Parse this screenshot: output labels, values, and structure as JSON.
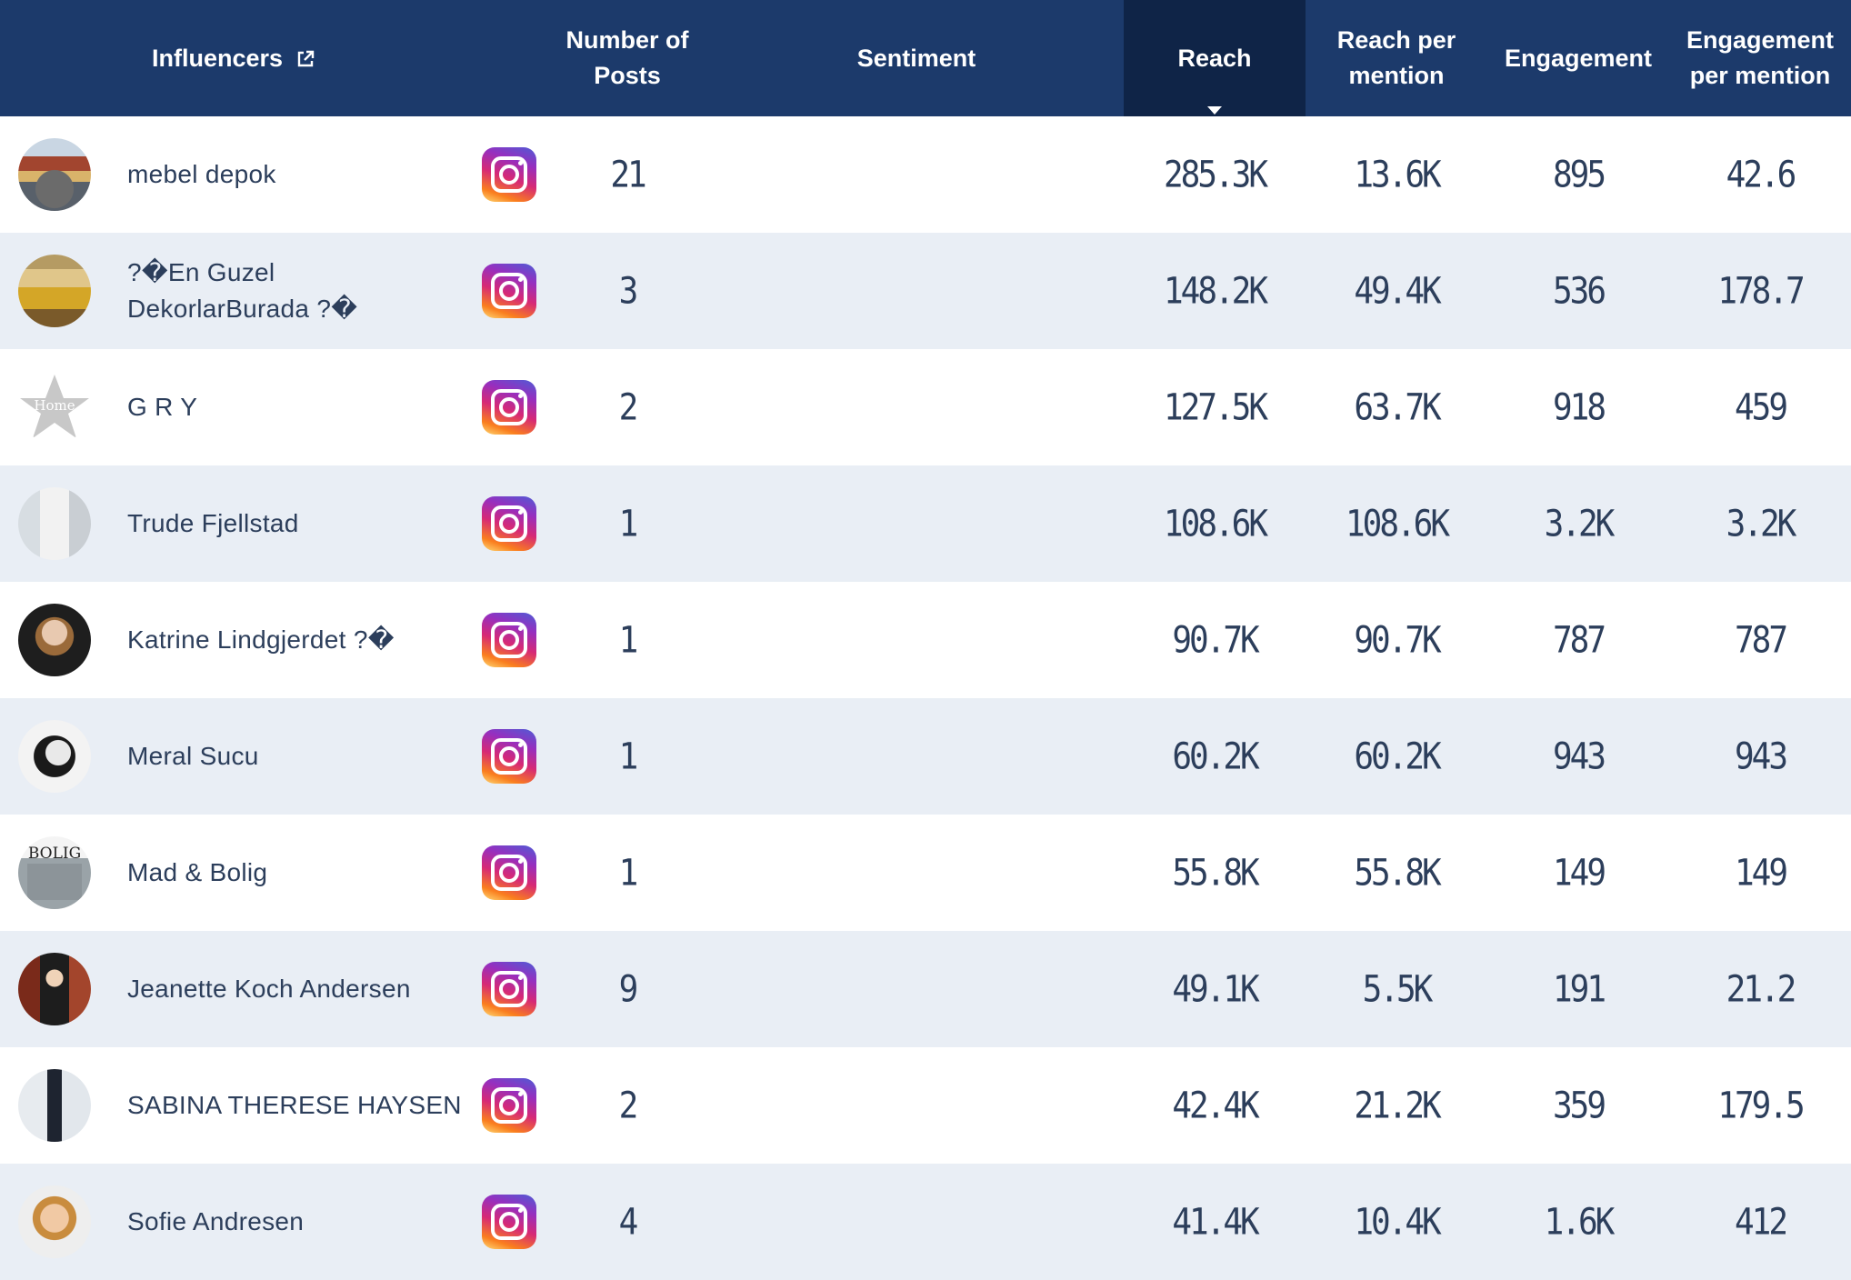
{
  "header": {
    "influencers": "Influencers",
    "posts_line1": "Number of",
    "posts_line2": "Posts",
    "sentiment": "Sentiment",
    "reach": "Reach",
    "rpm_line1": "Reach per",
    "rpm_line2": "mention",
    "engagement": "Engagement",
    "epm_line1": "Engagement",
    "epm_line2": "per mention"
  },
  "sort": {
    "column": "reach",
    "direction": "descending"
  },
  "platform_icon": "instagram-icon",
  "colors": {
    "header": "#1c3a6b",
    "header_sorted": "#0f2447",
    "row_alt": "#e9eef5",
    "text": "#2c3e5b"
  },
  "rows": [
    {
      "name1": "mebel depok",
      "name2": "",
      "posts": "21",
      "reach": "285.3K",
      "reach_per_mention": "13.6K",
      "engagement": "895",
      "engagement_per_mention": "42.6"
    },
    {
      "name1": "?�En Guzel",
      "name2": "DekorlarBurada ?�",
      "posts": "3",
      "reach": "148.2K",
      "reach_per_mention": "49.4K",
      "engagement": "536",
      "engagement_per_mention": "178.7"
    },
    {
      "name1": "G R Y",
      "name2": "",
      "avatar_text": "Home",
      "posts": "2",
      "reach": "127.5K",
      "reach_per_mention": "63.7K",
      "engagement": "918",
      "engagement_per_mention": "459"
    },
    {
      "name1": "Trude Fjellstad",
      "name2": "",
      "posts": "1",
      "reach": "108.6K",
      "reach_per_mention": "108.6K",
      "engagement": "3.2K",
      "engagement_per_mention": "3.2K"
    },
    {
      "name1": "Katrine Lindgjerdet ?�",
      "name2": "",
      "posts": "1",
      "reach": "90.7K",
      "reach_per_mention": "90.7K",
      "engagement": "787",
      "engagement_per_mention": "787"
    },
    {
      "name1": "Meral Sucu",
      "name2": "",
      "posts": "1",
      "reach": "60.2K",
      "reach_per_mention": "60.2K",
      "engagement": "943",
      "engagement_per_mention": "943"
    },
    {
      "name1": "Mad & Bolig",
      "name2": "",
      "avatar_text": "BOLIG",
      "posts": "1",
      "reach": "55.8K",
      "reach_per_mention": "55.8K",
      "engagement": "149",
      "engagement_per_mention": "149"
    },
    {
      "name1": "Jeanette Koch Andersen",
      "name2": "",
      "posts": "9",
      "reach": "49.1K",
      "reach_per_mention": "5.5K",
      "engagement": "191",
      "engagement_per_mention": "21.2"
    },
    {
      "name1": "SABINA THERESE HAYSEN",
      "name2": "",
      "posts": "2",
      "reach": "42.4K",
      "reach_per_mention": "21.2K",
      "engagement": "359",
      "engagement_per_mention": "179.5"
    },
    {
      "name1": "Sofie Andresen",
      "name2": "",
      "posts": "4",
      "reach": "41.4K",
      "reach_per_mention": "10.4K",
      "engagement": "1.6K",
      "engagement_per_mention": "412"
    }
  ]
}
